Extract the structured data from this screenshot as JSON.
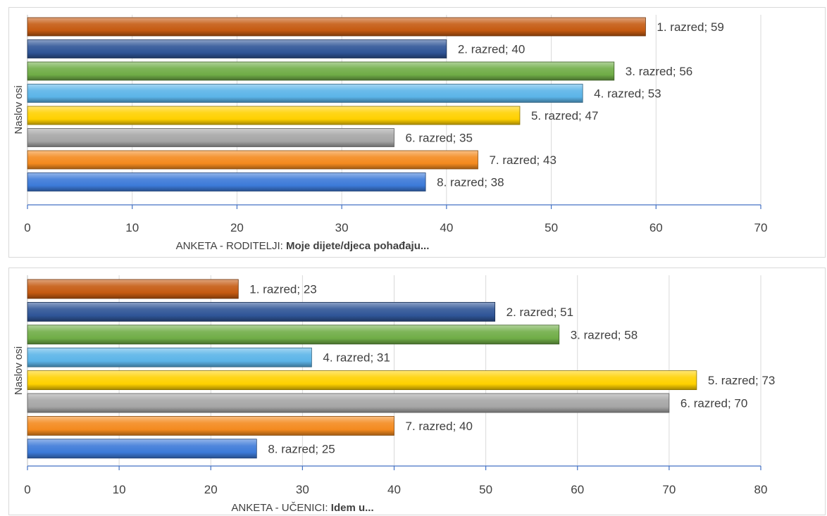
{
  "colors": {
    "grid": "#d9d9d9",
    "axis": "#4472c4",
    "palette": [
      "#c55a11",
      "#2f5597",
      "#70ad47",
      "#5bb4e8",
      "#ffd100",
      "#a6a6a6",
      "#f48a1f",
      "#3c7ad8"
    ]
  },
  "chart_data": [
    {
      "type": "bar",
      "orientation": "horizontal",
      "categories": [
        "1. razred",
        "2. razred",
        "3. razred",
        "4. razred",
        "5. razred",
        "6. razred",
        "7. razred",
        "8. razred"
      ],
      "values": [
        59,
        40,
        56,
        53,
        47,
        35,
        43,
        38
      ],
      "data_labels": [
        "1. razred; 59",
        "2. razred; 40",
        "3. razred; 56",
        "4. razred; 53",
        "5. razred; 47",
        "6. razred; 35",
        "7. razred; 43",
        "8. razred; 38"
      ],
      "xlim": [
        0,
        70
      ],
      "xticks": [
        0,
        10,
        20,
        30,
        40,
        50,
        60,
        70
      ],
      "xlabel_prefix": "ANKETA - RODITELJI: ",
      "xlabel_bold": "Moje dijete/djeca pohađaju...",
      "ylabel": "Naslov osi",
      "grid": true
    },
    {
      "type": "bar",
      "orientation": "horizontal",
      "categories": [
        "1. razred",
        "2. razred",
        "3. razred",
        "4. razred",
        "5. razred",
        "6. razred",
        "7. razred",
        "8. razred"
      ],
      "values": [
        23,
        51,
        58,
        31,
        73,
        70,
        40,
        25
      ],
      "data_labels": [
        "1. razred; 23",
        "2. razred; 51",
        "3. razred; 58",
        "4. razred; 31",
        "5. razred; 73",
        "6. razred; 70",
        "7. razred; 40",
        "8. razred; 25"
      ],
      "xlim": [
        0,
        80
      ],
      "xticks": [
        0,
        10,
        20,
        30,
        40,
        50,
        60,
        70,
        80
      ],
      "xlabel_prefix": "ANKETA - UČENICI: ",
      "xlabel_bold": "Idem u...",
      "ylabel": "Naslov osi",
      "grid": true
    }
  ]
}
